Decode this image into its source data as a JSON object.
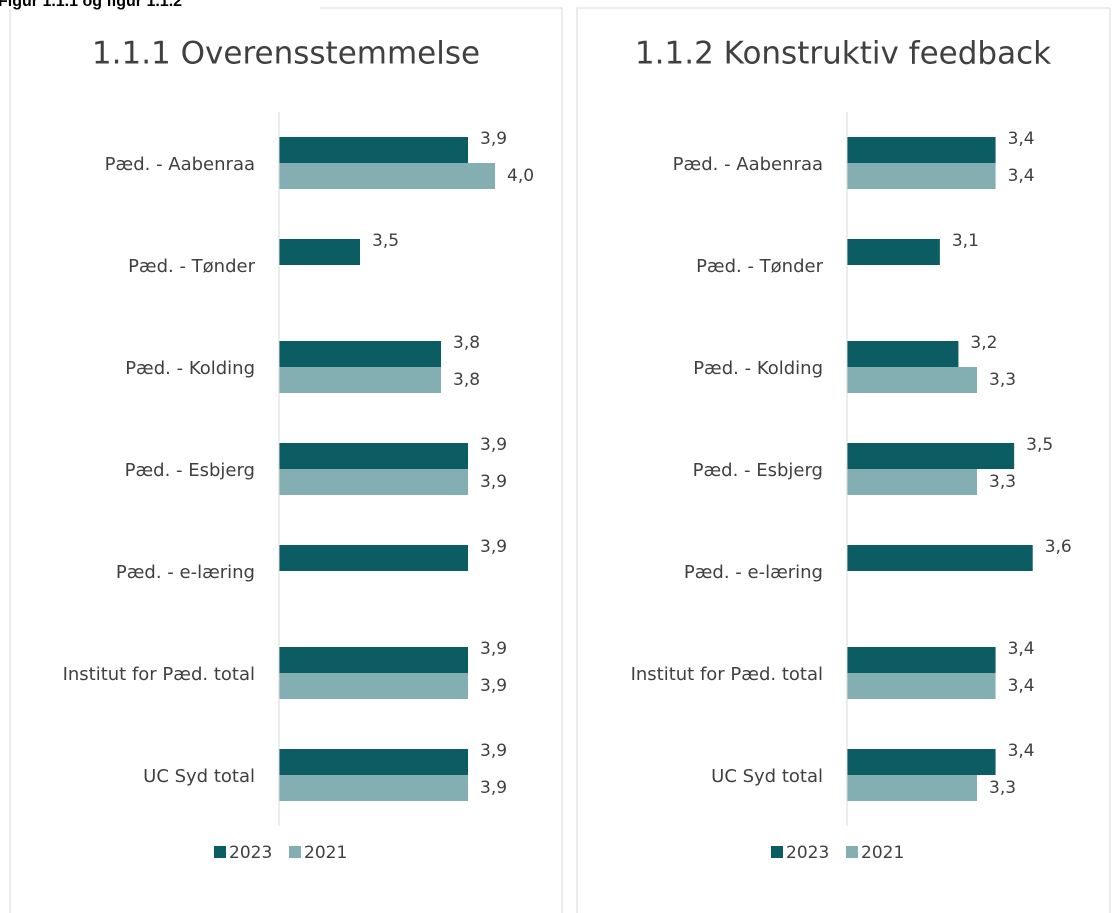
{
  "header": "Figur 1.1.1 og figur 1.1.2",
  "chart_data": [
    {
      "type": "bar",
      "orientation": "horizontal",
      "title": "1.1.1 Overensstemmelse",
      "categories": [
        "Pæd. - Aabenraa",
        "Pæd. - Tønder",
        "Pæd. - Kolding",
        "Pæd. - Esbjerg",
        "Pæd. - e-læring",
        "Institut for Pæd. total",
        "UC Syd total"
      ],
      "series": [
        {
          "name": "2023",
          "color": "#0b5c63",
          "values": [
            3.9,
            3.5,
            3.8,
            3.9,
            3.9,
            3.9,
            3.9
          ],
          "value_labels": [
            "3,9",
            "3,5",
            "3,8",
            "3,9",
            "3,9",
            "3,9",
            "3,9"
          ]
        },
        {
          "name": "2021",
          "color": "#84afb2",
          "values": [
            4.0,
            null,
            3.8,
            3.9,
            null,
            3.9,
            3.9
          ],
          "value_labels": [
            "4,0",
            null,
            "3,8",
            "3,9",
            null,
            "3,9",
            "3,9"
          ]
        }
      ],
      "xlim": [
        3.2,
        4.2
      ],
      "legend": "bottom"
    },
    {
      "type": "bar",
      "orientation": "horizontal",
      "title": "1.1.2 Konstruktiv feedback",
      "categories": [
        "Pæd. - Aabenraa",
        "Pæd. - Tønder",
        "Pæd. - Kolding",
        "Pæd. - Esbjerg",
        "Pæd. - e-læring",
        "Institut for Pæd. total",
        "UC Syd total"
      ],
      "series": [
        {
          "name": "2023",
          "color": "#0b5c63",
          "values": [
            3.4,
            3.1,
            3.2,
            3.5,
            3.6,
            3.4,
            3.4
          ],
          "value_labels": [
            "3,4",
            "3,1",
            "3,2",
            "3,5",
            "3,6",
            "3,4",
            "3,4"
          ]
        },
        {
          "name": "2021",
          "color": "#84afb2",
          "values": [
            3.4,
            null,
            3.3,
            3.3,
            null,
            3.4,
            3.3
          ],
          "value_labels": [
            "3,4",
            null,
            "3,3",
            "3,3",
            null,
            "3,4",
            "3,3"
          ]
        }
      ],
      "xlim": [
        2.6,
        4.0
      ],
      "legend": "bottom"
    }
  ]
}
